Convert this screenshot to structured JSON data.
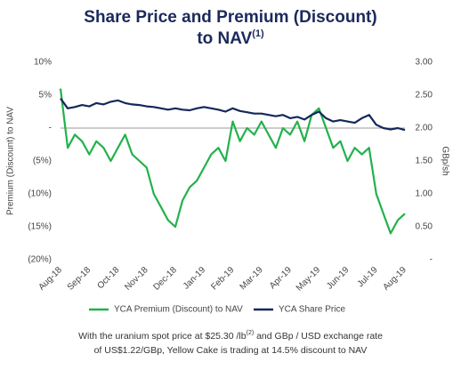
{
  "chart_data": {
    "type": "line",
    "title": "Share Price and Premium (Discount)",
    "title_line2": "to NAV",
    "title_superscript": "(1)",
    "ylabel": "Premium (Discount) to NAV",
    "y2label": "GBp/sh",
    "categories": [
      "Aug-18",
      null,
      null,
      null,
      "Sep-18",
      null,
      null,
      null,
      "Oct-18",
      null,
      null,
      null,
      "Nov-18",
      null,
      null,
      null,
      "Dec-18",
      null,
      null,
      null,
      "Jan-19",
      null,
      null,
      null,
      "Feb-19",
      null,
      null,
      null,
      "Mar-19",
      null,
      null,
      null,
      "Apr-19",
      null,
      null,
      null,
      "May-19",
      null,
      null,
      null,
      "Jun-19",
      null,
      null,
      null,
      "Jul-19",
      null,
      null,
      null,
      "Aug-19"
    ],
    "series": [
      {
        "name": "YCA Premium (Discount) to NAV",
        "color": "#22b24c",
        "values": [
          6,
          -3,
          -1,
          -2,
          -4,
          -2,
          -3,
          -5,
          -3,
          -1,
          -4,
          -5,
          -6,
          -10,
          -12,
          -14,
          -15,
          -11,
          -9,
          -8,
          -6,
          -4,
          -3,
          -5,
          1,
          -2,
          0,
          -1,
          1,
          -1,
          -3,
          0,
          -1,
          1,
          -2,
          2,
          3,
          0,
          -3,
          -2,
          -5,
          -3,
          -4,
          -3,
          -10,
          -13,
          -16,
          -14,
          -13
        ]
      },
      {
        "name": "YCA Share Price",
        "color": "#14285a",
        "axis": "y2",
        "values": [
          2.45,
          2.3,
          2.32,
          2.35,
          2.33,
          2.38,
          2.36,
          2.4,
          2.42,
          2.38,
          2.36,
          2.35,
          2.33,
          2.32,
          2.3,
          2.28,
          2.3,
          2.28,
          2.27,
          2.3,
          2.32,
          2.3,
          2.28,
          2.25,
          2.3,
          2.26,
          2.24,
          2.22,
          2.22,
          2.2,
          2.18,
          2.2,
          2.15,
          2.17,
          2.13,
          2.2,
          2.25,
          2.15,
          2.1,
          2.12,
          2.1,
          2.08,
          2.15,
          2.2,
          2.05,
          2.0,
          1.98,
          2.0,
          1.97
        ]
      }
    ],
    "ylim": [
      -20,
      10
    ],
    "yticks": [
      {
        "value": 10,
        "label": "10%"
      },
      {
        "value": 5,
        "label": "5%"
      },
      {
        "value": 0,
        "label": "-"
      },
      {
        "value": -5,
        "label": "(5%)"
      },
      {
        "value": -10,
        "label": "(10%)"
      },
      {
        "value": -15,
        "label": "(15%)"
      },
      {
        "value": -20,
        "label": "(20%)"
      }
    ],
    "y2lim": [
      0,
      3
    ],
    "y2ticks": [
      {
        "value": 3,
        "label": "3.00"
      },
      {
        "value": 2.5,
        "label": "2.50"
      },
      {
        "value": 2,
        "label": "2.00"
      },
      {
        "value": 1.5,
        "label": "1.50"
      },
      {
        "value": 1,
        "label": "1.00"
      },
      {
        "value": 0.5,
        "label": "0.50"
      },
      {
        "value": 0,
        "label": "-"
      }
    ],
    "zero_line": true,
    "legend": "bottom",
    "footnote": [
      "With the uranium spot price at $25.30 /lb",
      "(2)",
      " and GBp / USD exchange rate",
      "of US$1.22/GBp, Yellow Cake is trading at 14.5% discount to NAV"
    ]
  }
}
